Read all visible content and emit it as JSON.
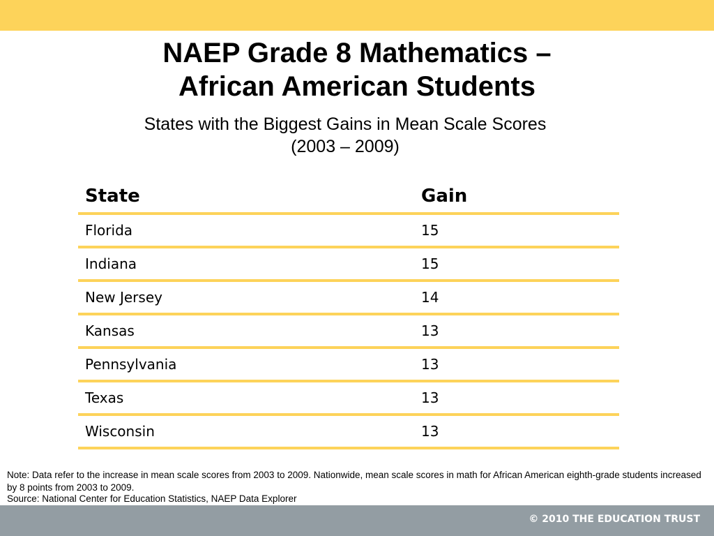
{
  "title": {
    "line1": "NAEP Grade 8 Mathematics –",
    "line2": "African American Students"
  },
  "subtitle": {
    "line1": "States with the Biggest Gains in Mean Scale Scores",
    "line2": "(2003 – 2009)"
  },
  "table": {
    "headers": [
      "State",
      "Gain"
    ],
    "rows": [
      [
        "Florida",
        "15"
      ],
      [
        "Indiana",
        "15"
      ],
      [
        "New Jersey",
        "14"
      ],
      [
        "Kansas",
        "13"
      ],
      [
        "Pennsylvania",
        "13"
      ],
      [
        "Texas",
        "13"
      ],
      [
        "Wisconsin",
        "13"
      ]
    ]
  },
  "note": "Note: Data refer to the increase in mean scale scores from 2003 to 2009. Nationwide, mean scale scores in math for African American eighth-grade students increased by 8 points from 2003 to 2009.",
  "source": "Source: National Center for Education Statistics, NAEP Data Explorer",
  "footer": {
    "copyright": "© 2010 THE EDUCATION TRUST"
  },
  "colors": {
    "accent": "#fdd35a",
    "footer_band": "#939da3"
  }
}
